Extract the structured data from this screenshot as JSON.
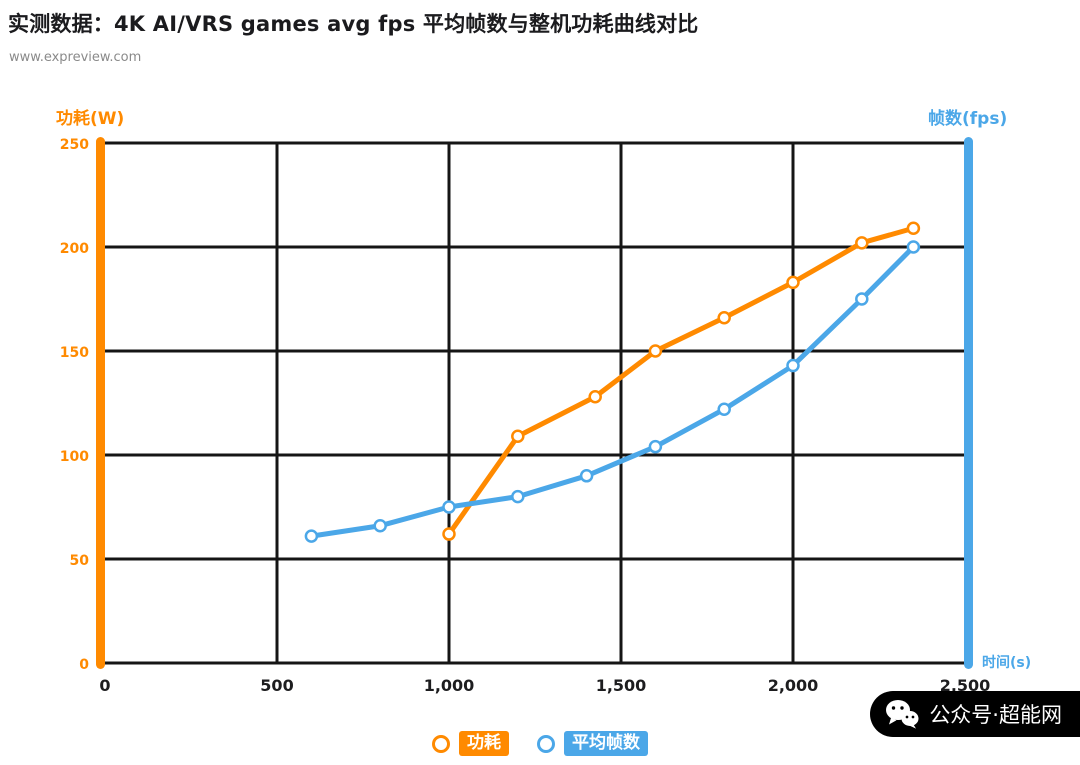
{
  "header": {
    "title": "实测数据：4K AI/VRS games avg fps 平均帧数与整机功耗曲线对比",
    "subtitle": "www.expreview.com"
  },
  "axes": {
    "left_title": "功耗(W)",
    "right_title": "帧数(fps)",
    "x_unit": "时间(s)"
  },
  "colors": {
    "orange": "#FF8A00",
    "blue": "#4BA7E8",
    "grid": "#151515",
    "text": "#1d1d1f"
  },
  "watermark": {
    "icon": "wechat-icon",
    "text": "公众号·超能网"
  },
  "chart_data": {
    "type": "line",
    "title": "实测数据：4K AI/VRS games avg fps 平均帧数与整机功耗曲线对比",
    "subtitle": "www.expreview.com",
    "grid": true,
    "legend_position": "bottom",
    "x": {
      "min": 0,
      "max": 2500,
      "ticks": [
        0,
        500,
        1000,
        1500,
        2000,
        2500
      ],
      "labels": [
        "0",
        "500",
        "1,000",
        "1,500",
        "2,000",
        "2,500"
      ],
      "title": "时间(s)"
    },
    "y_left": {
      "min": 0,
      "max": 250,
      "ticks": [
        0,
        50,
        100,
        150,
        200,
        250
      ],
      "labels": [
        "0",
        "50",
        "100",
        "150",
        "200",
        "250"
      ],
      "title": "功耗(W)"
    },
    "y_right": {
      "title": "帧数(fps)"
    },
    "series": [
      {
        "name": "功耗",
        "color": "#FF8A00",
        "points": [
          [
            1000,
            62
          ],
          [
            1200,
            109
          ],
          [
            1425,
            128
          ],
          [
            1600,
            150
          ],
          [
            1800,
            166
          ],
          [
            2000,
            183
          ],
          [
            2200,
            202
          ],
          [
            2350,
            209
          ]
        ]
      },
      {
        "name": "平均帧数",
        "color": "#4BA7E8",
        "points": [
          [
            600,
            61
          ],
          [
            800,
            66
          ],
          [
            1000,
            75
          ],
          [
            1200,
            80
          ],
          [
            1400,
            90
          ],
          [
            1600,
            104
          ],
          [
            1800,
            122
          ],
          [
            2000,
            143
          ],
          [
            2200,
            175
          ],
          [
            2350,
            200
          ]
        ]
      }
    ]
  }
}
